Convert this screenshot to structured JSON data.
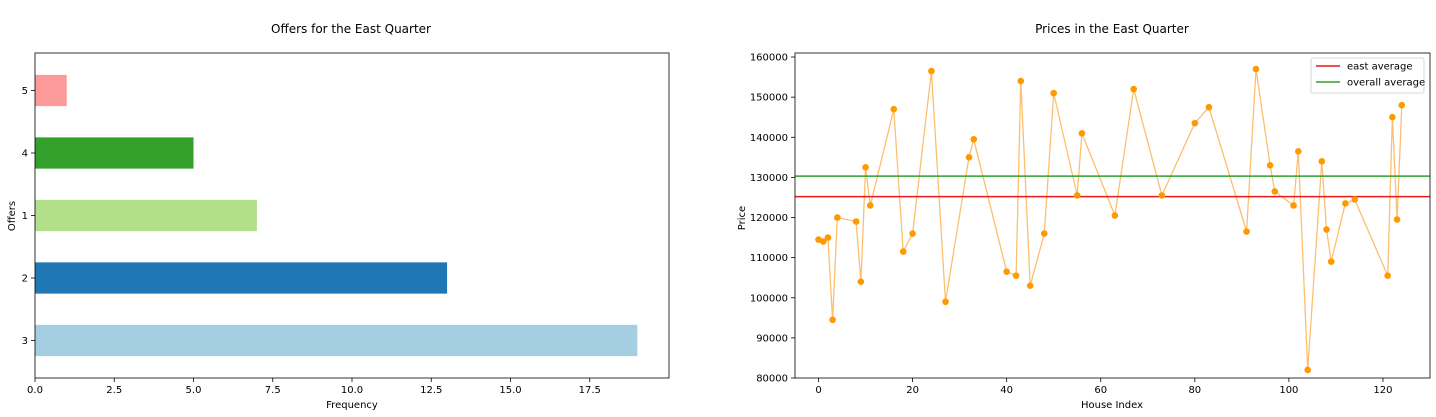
{
  "chart_data": [
    {
      "type": "bar",
      "orientation": "horizontal",
      "title": "Offers for the East Quarter",
      "xlabel": "Frequency",
      "ylabel": "Offers",
      "categories": [
        "3",
        "2",
        "1",
        "4",
        "5"
      ],
      "values": [
        19,
        13,
        7,
        5,
        1
      ],
      "colors": [
        "#a6cee3",
        "#1f78b4",
        "#b2df8a",
        "#33a02c",
        "#fb9a99"
      ],
      "xlim": [
        0,
        20
      ],
      "xticks": [
        "0.0",
        "2.5",
        "5.0",
        "7.5",
        "10.0",
        "12.5",
        "15.0",
        "17.5"
      ],
      "grid": false
    },
    {
      "type": "line",
      "title": "Prices in the East Quarter",
      "xlabel": "House Index",
      "ylabel": "Price",
      "xlim": [
        -5,
        130
      ],
      "ylim": [
        80000,
        161000
      ],
      "xticks": [
        "0",
        "20",
        "40",
        "60",
        "80",
        "100",
        "120"
      ],
      "yticks": [
        "80000",
        "90000",
        "100000",
        "110000",
        "120000",
        "130000",
        "140000",
        "150000",
        "160000"
      ],
      "grid": false,
      "series": [
        {
          "line_color": "#fdbf6f",
          "marker_color": "#ff9900",
          "x": [
            0,
            1,
            2,
            3,
            4,
            8,
            9,
            10,
            11,
            16,
            18,
            20,
            24,
            27,
            32,
            33,
            40,
            42,
            43,
            45,
            48,
            50,
            55,
            56,
            63,
            67,
            73,
            80,
            83,
            91,
            93,
            96,
            97,
            101,
            102,
            104,
            107,
            108,
            109,
            112,
            114,
            121,
            122,
            123,
            124
          ],
          "y": [
            114500,
            114000,
            115000,
            94500,
            120000,
            119000,
            104000,
            132500,
            123000,
            147000,
            111500,
            116000,
            156500,
            99000,
            135000,
            139500,
            106500,
            105500,
            154000,
            103000,
            116000,
            151000,
            125500,
            141000,
            120500,
            152000,
            125500,
            143500,
            147500,
            116500,
            157000,
            133000,
            126500,
            123000,
            136500,
            82000,
            134000,
            117000,
            109000,
            123500,
            124500,
            105500,
            145000,
            119500,
            148000
          ]
        }
      ],
      "hlines": [
        {
          "name": "east average",
          "y": 125200,
          "color": "#e41a1c"
        },
        {
          "name": "overall average",
          "y": 130300,
          "color": "#2ca02c"
        }
      ],
      "legend": "top-right"
    }
  ]
}
